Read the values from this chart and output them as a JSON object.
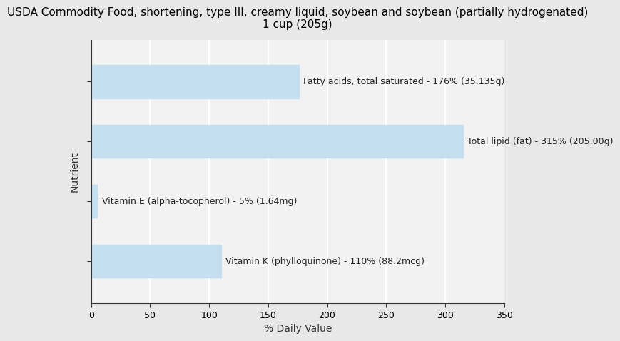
{
  "title": "USDA Commodity Food, shortening, type III, creamy liquid, soybean and soybean (partially hydrogenated)\n1 cup (205g)",
  "xlabel": "% Daily Value",
  "ylabel": "Nutrient",
  "background_color": "#e8e8e8",
  "plot_background_color": "#f2f2f2",
  "bar_color": "#c5dff0",
  "bars": [
    {
      "label": "Fatty acids, total saturated - 176% (35.135g)",
      "value": 176
    },
    {
      "label": "Total lipid (fat) - 315% (205.00g)",
      "value": 315
    },
    {
      "label": "Vitamin E (alpha-tocopherol) - 5% (1.64mg)",
      "value": 5
    },
    {
      "label": "Vitamin K (phylloquinone) - 110% (88.2mcg)",
      "value": 110
    }
  ],
  "xlim": [
    0,
    350
  ],
  "xticks": [
    0,
    50,
    100,
    150,
    200,
    250,
    300,
    350
  ],
  "grid_color": "#ffffff",
  "text_color": "#222222",
  "title_fontsize": 11,
  "label_fontsize": 9,
  "axis_label_fontsize": 10,
  "bar_height": 0.55
}
